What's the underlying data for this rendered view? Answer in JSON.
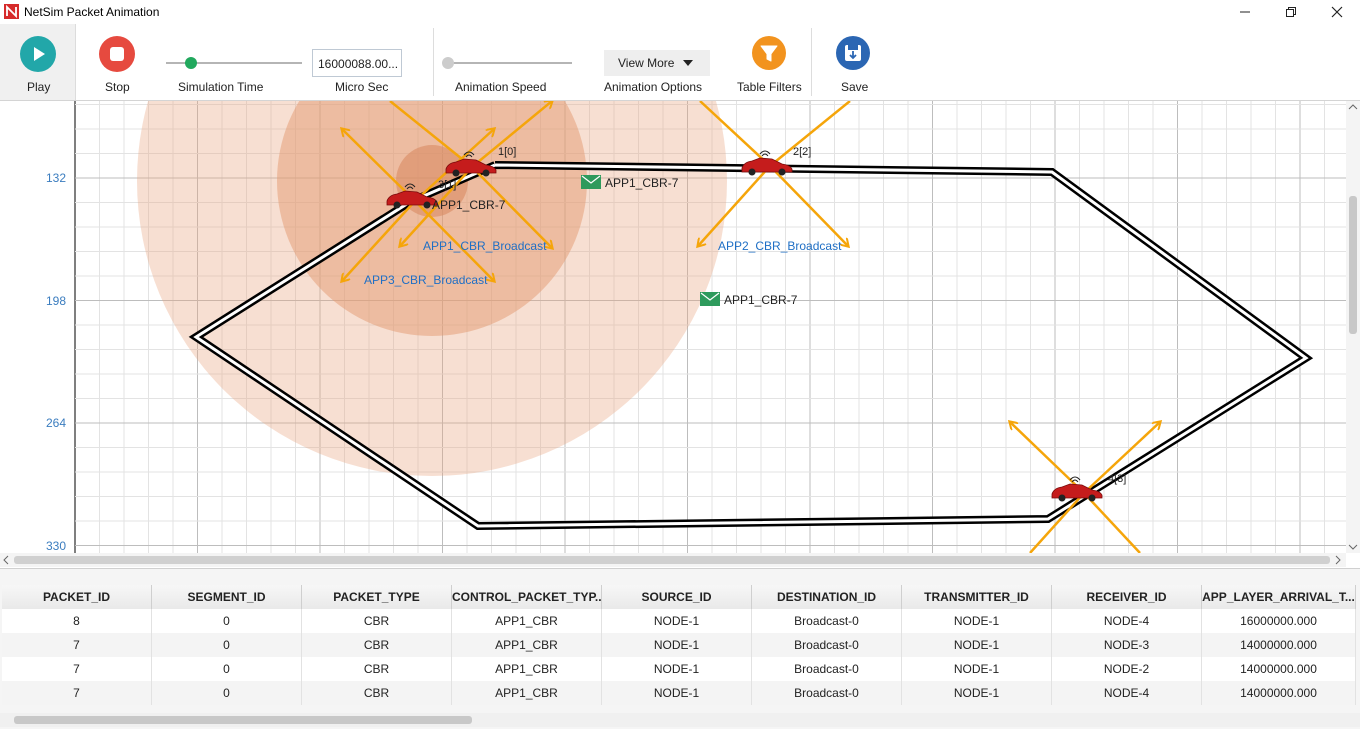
{
  "window": {
    "title": "NetSim Packet Animation"
  },
  "toolbar": {
    "play_label": "Play",
    "stop_label": "Stop",
    "sim_time_label": "Simulation Time",
    "time_value": "16000088.00...",
    "time_unit_label": "Micro Sec",
    "anim_speed_label": "Animation Speed",
    "view_more_label": "View More",
    "anim_options_label": "Animation Options",
    "table_filters_label": "Table Filters",
    "save_label": "Save"
  },
  "canvas": {
    "y_ticks": [
      "132",
      "198",
      "264",
      "330"
    ],
    "nodes": [
      {
        "label": "1[0]",
        "icon": "car-icon"
      },
      {
        "label": "2[2]",
        "icon": "car-icon"
      },
      {
        "label": "3[1]",
        "icon": "car-icon"
      },
      {
        "label": "4[3]",
        "icon": "car-icon"
      }
    ],
    "flow_labels": [
      "APP1_CBR_Broadcast",
      "APP2_CBR_Broadcast",
      "APP3_CBR_Broadcast"
    ],
    "packet_labels": [
      "APP1_CBR-7",
      "APP1_CBR-7",
      "APP1_CBR-7"
    ],
    "colors": {
      "flow_label": "#1f6fc5",
      "arrow": "#f5a50a",
      "range": "#e9a47f",
      "road": "#000000",
      "packet": "#2e9a5c"
    }
  },
  "table": {
    "columns": [
      "PACKET_ID",
      "SEGMENT_ID",
      "PACKET_TYPE",
      "CONTROL_PACKET_TYP...",
      "SOURCE_ID",
      "DESTINATION_ID",
      "TRANSMITTER_ID",
      "RECEIVER_ID",
      "APP_LAYER_ARRIVAL_T..."
    ],
    "rows": [
      [
        "8",
        "0",
        "CBR",
        "APP1_CBR",
        "NODE-1",
        "Broadcast-0",
        "NODE-1",
        "NODE-4",
        "16000000.000"
      ],
      [
        "7",
        "0",
        "CBR",
        "APP1_CBR",
        "NODE-1",
        "Broadcast-0",
        "NODE-1",
        "NODE-3",
        "14000000.000"
      ],
      [
        "7",
        "0",
        "CBR",
        "APP1_CBR",
        "NODE-1",
        "Broadcast-0",
        "NODE-1",
        "NODE-2",
        "14000000.000"
      ],
      [
        "7",
        "0",
        "CBR",
        "APP1_CBR",
        "NODE-1",
        "Broadcast-0",
        "NODE-1",
        "NODE-4",
        "14000000.000"
      ]
    ]
  }
}
